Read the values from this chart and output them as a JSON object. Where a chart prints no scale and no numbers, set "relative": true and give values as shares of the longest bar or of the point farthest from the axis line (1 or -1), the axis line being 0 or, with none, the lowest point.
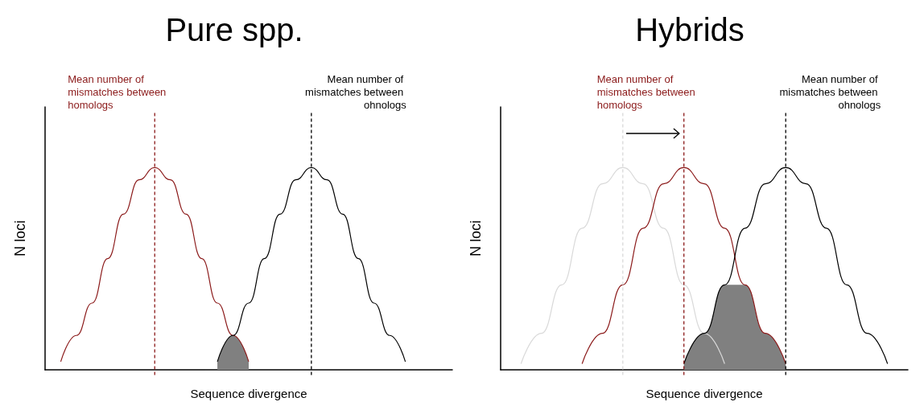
{
  "chart_data": [
    {
      "type": "line",
      "title": "Pure spp.",
      "xlabel": "Sequence divergence",
      "ylabel": "N loci",
      "relative": true,
      "marker": "none",
      "line_style": "solid",
      "categories": [
        null,
        null,
        null,
        null,
        null,
        null,
        null,
        null,
        null,
        null,
        null,
        null,
        null,
        null,
        null,
        null,
        null,
        null,
        null,
        null,
        null,
        null,
        null,
        null,
        null,
        null,
        null
      ],
      "series": [
        {
          "color": "#8b1a1a",
          "values": [
            null,
            0.04,
            0.17,
            0.33,
            0.55,
            0.77,
            0.94,
            1,
            0.94,
            0.77,
            0.55,
            0.33,
            0.17,
            0.04,
            null,
            null,
            null,
            null,
            null,
            null,
            null,
            null,
            null,
            null,
            null,
            null,
            null
          ]
        },
        {
          "color": "#000000",
          "values": [
            null,
            null,
            null,
            null,
            null,
            null,
            null,
            null,
            null,
            null,
            null,
            0.04,
            0.17,
            0.33,
            0.55,
            0.77,
            0.94,
            1,
            0.94,
            0.77,
            0.55,
            0.33,
            0.17,
            0.04,
            null,
            null,
            null
          ]
        },
        {
          "type": "area",
          "color": "#808080",
          "values": [
            null,
            null,
            null,
            null,
            null,
            null,
            null,
            null,
            null,
            null,
            null,
            0.04,
            0.17,
            0.04,
            null,
            null,
            null,
            null,
            null,
            null,
            null,
            null,
            null,
            null,
            null,
            null,
            null
          ]
        }
      ],
      "annotations": [
        "Mean number of mismatches between homologs",
        "Mean number of mismatches between ohnologs"
      ]
    },
    {
      "type": "line",
      "title": "Hybrids",
      "xlabel": "Sequence divergence",
      "ylabel": "N loci",
      "relative": true,
      "marker": "none",
      "line_style": "solid",
      "categories": [
        null,
        null,
        null,
        null,
        null,
        null,
        null,
        null,
        null,
        null,
        null,
        null,
        null,
        null,
        null,
        null,
        null,
        null,
        null,
        null,
        null
      ],
      "series": [
        {
          "color": "#d9d9d9",
          "values": [
            null,
            0.03,
            0.18,
            0.42,
            0.7,
            0.92,
            1,
            0.92,
            0.7,
            0.42,
            0.18,
            0.03,
            null,
            null,
            null,
            null,
            null,
            null,
            null,
            null,
            null
          ]
        },
        {
          "color": "#8b1a1a",
          "values": [
            null,
            null,
            null,
            null,
            0.03,
            0.18,
            0.42,
            0.7,
            0.92,
            1,
            0.92,
            0.7,
            0.42,
            0.18,
            0.03,
            null,
            null,
            null,
            null,
            null,
            null
          ]
        },
        {
          "color": "#000000",
          "values": [
            null,
            null,
            null,
            null,
            null,
            null,
            null,
            null,
            null,
            0.03,
            0.18,
            0.42,
            0.7,
            0.92,
            1,
            0.92,
            0.7,
            0.42,
            0.18,
            0.03,
            null
          ]
        },
        {
          "type": "area",
          "color": "#808080",
          "values": [
            null,
            null,
            null,
            null,
            null,
            null,
            null,
            null,
            null,
            0.03,
            0.18,
            0.42,
            0.42,
            0.18,
            0.03,
            null,
            null,
            null,
            null,
            null,
            null
          ]
        }
      ],
      "annotations": [
        "Mean number of mismatches between homologs",
        "Mean number of mismatches between ohnologs"
      ]
    }
  ]
}
